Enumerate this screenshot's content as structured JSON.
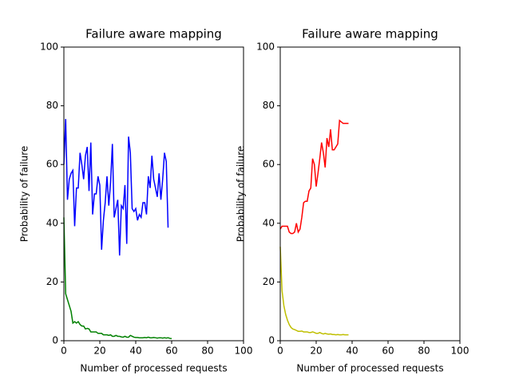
{
  "chart_data": [
    {
      "type": "line",
      "title": "Failure aware mapping",
      "xlabel": "Number of processed requests",
      "ylabel": "Probability of failure",
      "x": [
        0,
        1,
        2,
        3,
        4,
        5,
        6,
        7,
        8,
        9,
        10,
        11,
        12,
        13,
        14,
        15,
        16,
        17,
        18,
        19,
        20,
        21,
        22,
        23,
        24,
        25,
        26,
        27,
        28,
        29,
        30,
        31,
        32,
        33,
        34,
        35,
        36,
        37,
        38,
        39,
        40,
        41,
        42,
        43,
        44,
        45,
        46,
        47,
        48,
        49,
        50,
        51,
        52,
        53,
        54,
        55,
        56,
        57,
        58,
        59,
        60
      ],
      "series": [
        {
          "color": "#0000ff",
          "values": [
            60,
            75.5,
            48,
            55,
            57,
            58,
            39,
            52,
            52,
            64,
            60,
            55,
            63,
            66,
            51,
            67.5,
            43,
            50,
            50,
            56,
            53,
            31,
            41,
            47,
            56,
            46,
            54,
            67,
            42,
            45,
            48,
            29,
            46,
            45,
            53,
            33,
            69.5,
            64,
            45,
            44,
            45,
            41,
            43,
            42,
            47,
            47,
            43,
            56,
            52,
            63,
            55,
            52,
            49,
            57,
            48,
            55,
            64,
            61,
            38.5,
            null,
            null
          ]
        },
        {
          "color": "#008000",
          "values": [
            42,
            16,
            14,
            12,
            10,
            6,
            6.5,
            6,
            6.5,
            5.5,
            5,
            5,
            4,
            4.2,
            4,
            3,
            3,
            3,
            3,
            2.5,
            2.5,
            2.5,
            2,
            2,
            2,
            1.8,
            2,
            1.5,
            1.5,
            1.8,
            1.5,
            1.5,
            1.3,
            1.2,
            1.5,
            1.2,
            1.2,
            1.8,
            1.5,
            1.2,
            1.1,
            1.1,
            1,
            1,
            1,
            1.1,
            1,
            1.2,
            1,
            1,
            1.1,
            1,
            0.9,
            1,
            1,
            0.9,
            1,
            0.9,
            1,
            0.8,
            0.7
          ]
        }
      ],
      "xlim": [
        0,
        100
      ],
      "ylim": [
        0,
        100
      ],
      "xticks": [
        0,
        20,
        40,
        60,
        80,
        100
      ],
      "yticks": [
        0,
        20,
        40,
        60,
        80,
        100
      ]
    },
    {
      "type": "line",
      "title": "Failure aware mapping",
      "xlabel": "Number of processed requests",
      "ylabel": "Probability of failure",
      "x": [
        0,
        1,
        2,
        3,
        4,
        5,
        6,
        7,
        8,
        9,
        10,
        11,
        12,
        13,
        14,
        15,
        16,
        17,
        18,
        19,
        20,
        21,
        22,
        23,
        24,
        25,
        26,
        27,
        28,
        29,
        30,
        31,
        32,
        33,
        34,
        35,
        36,
        37,
        38
      ],
      "series": [
        {
          "color": "#ff0000",
          "values": [
            38,
            39,
            39,
            39,
            39,
            37,
            36.5,
            36.5,
            37,
            40,
            37,
            38,
            42,
            47,
            47.5,
            47.5,
            51,
            52,
            62,
            60,
            52.5,
            57,
            62,
            67.5,
            64,
            59,
            69,
            66,
            72,
            65,
            65,
            66,
            67,
            75,
            74.5,
            74,
            74,
            74,
            74
          ]
        },
        {
          "color": "#bfbf00",
          "values": [
            32,
            17,
            12,
            9,
            7,
            5.5,
            4.5,
            4,
            3.8,
            3.5,
            3.2,
            3.2,
            3.3,
            3,
            3,
            3,
            2.8,
            2.8,
            3,
            2.8,
            2.5,
            2.5,
            2.8,
            2.5,
            2.3,
            2.5,
            2.3,
            2.2,
            2.3,
            2.1,
            2.1,
            2,
            2.1,
            2,
            2,
            2.1,
            2,
            2,
            2
          ]
        }
      ],
      "xlim": [
        0,
        100
      ],
      "ylim": [
        0,
        100
      ],
      "xticks": [
        0,
        20,
        40,
        60,
        80,
        100
      ],
      "yticks": [
        0,
        20,
        40,
        60,
        80,
        100
      ]
    }
  ]
}
